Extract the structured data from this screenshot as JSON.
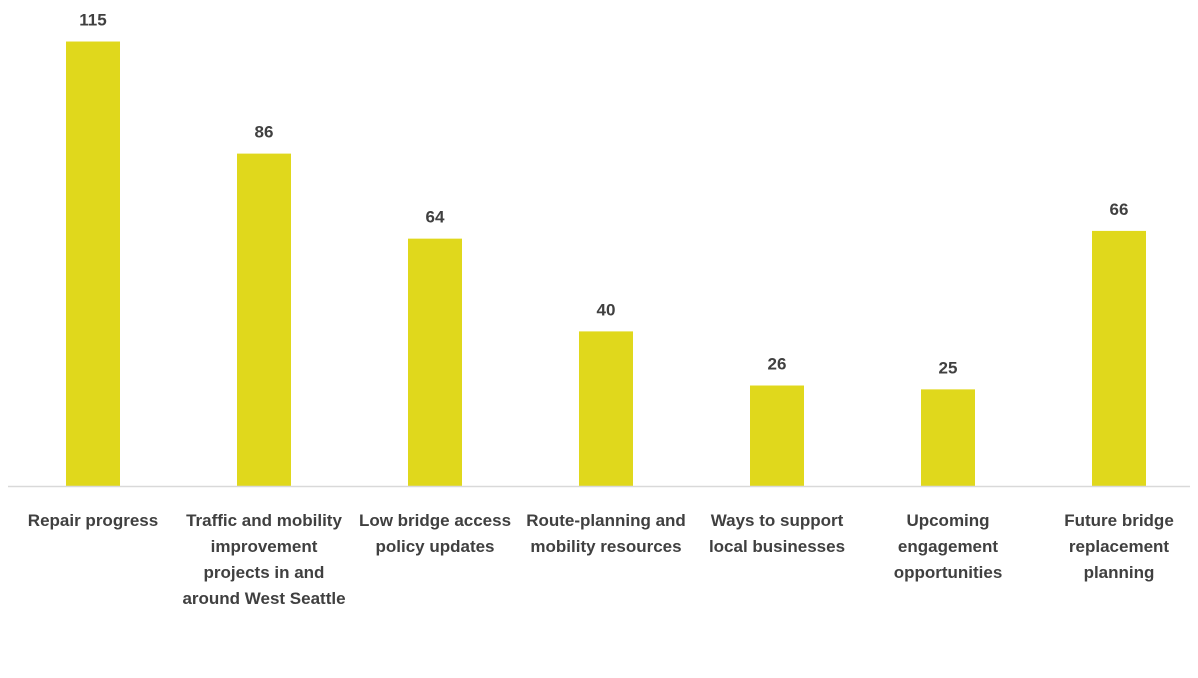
{
  "chart_data": {
    "type": "bar",
    "title": "",
    "xlabel": "",
    "ylabel": "",
    "ylim": [
      0,
      120
    ],
    "grid": false,
    "legend": "none",
    "bar_color": "#E0D81C",
    "label_color": "#404040",
    "axis_color": "#D9D9D9",
    "categories": [
      "Repair progress",
      "Traffic and mobility improvement projects in and around West Seattle",
      "Low bridge access policy updates",
      "Route-planning and mobility resources",
      "Ways to support local businesses",
      "Upcoming engagement opportunities",
      "Future bridge replacement planning"
    ],
    "values": [
      115,
      86,
      64,
      40,
      26,
      25,
      66
    ],
    "data_labels": [
      "115",
      "86",
      "64",
      "40",
      "26",
      "25",
      "66"
    ]
  }
}
